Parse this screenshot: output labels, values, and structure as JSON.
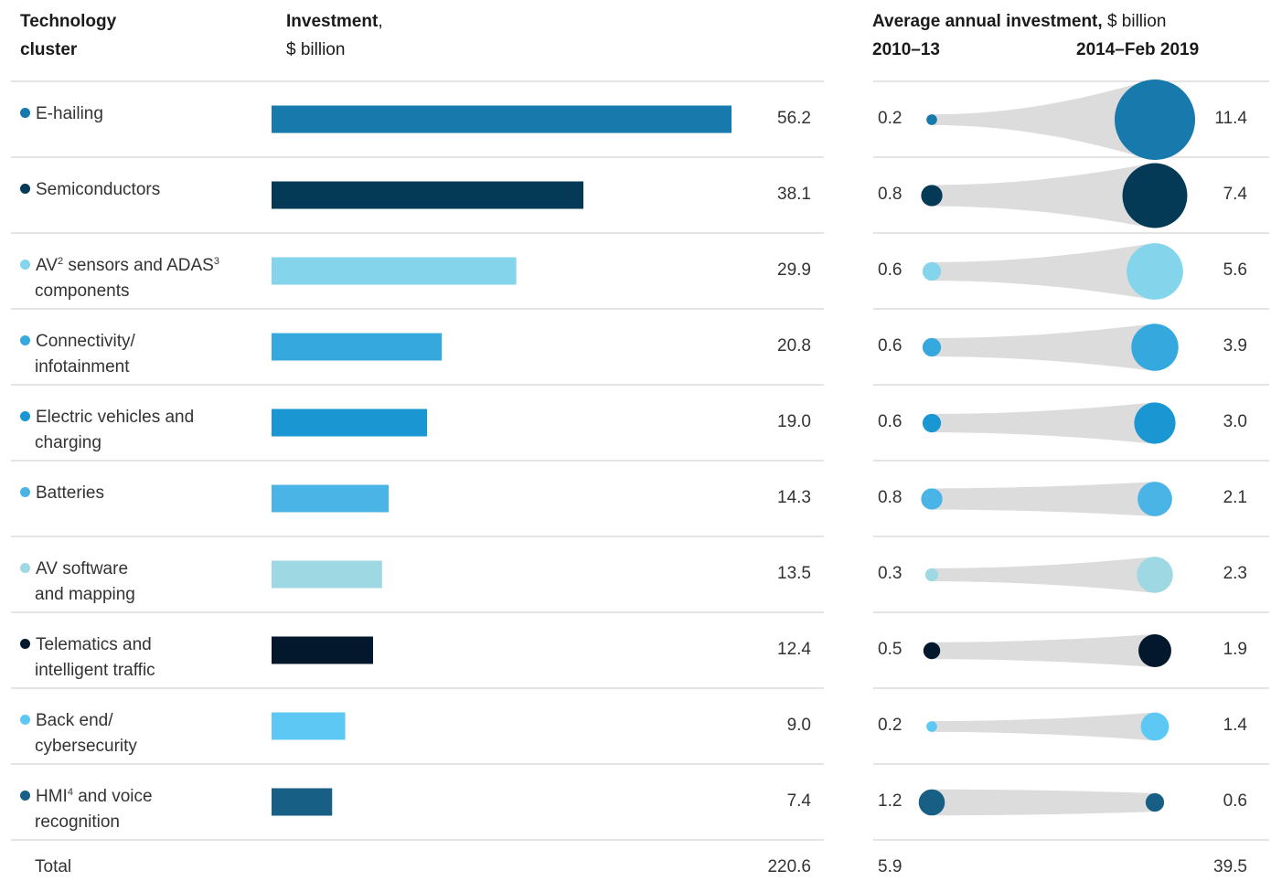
{
  "header": {
    "col1_line1": "Technology",
    "col1_line2": "cluster",
    "col2_bold": "Investment",
    "col2_comma": ",",
    "col2_line2": "$ billion",
    "col3_bold": "Average annual investment,",
    "col3_rest": " $ billion",
    "period1": "2010–13",
    "period2": "2014–Feb 2019"
  },
  "chart_data": {
    "type": "bar",
    "categories": [
      "E-hailing",
      "Semiconductors",
      "AV2 sensors and ADAS3 components",
      "Connectivity/ infotainment",
      "Electric vehicles and charging",
      "Batteries",
      "AV software and mapping",
      "Telematics and intelligent traffic",
      "Back end/ cybersecurity",
      "HMI4 and voice recognition"
    ],
    "values": [
      56.2,
      38.1,
      29.9,
      20.8,
      19.0,
      14.3,
      13.5,
      12.4,
      9.0,
      7.4
    ],
    "series": [
      {
        "name": "2010–13",
        "values": [
          0.2,
          0.8,
          0.6,
          0.6,
          0.6,
          0.8,
          0.3,
          0.5,
          0.2,
          1.2
        ]
      },
      {
        "name": "2014–Feb 2019",
        "values": [
          11.4,
          7.4,
          5.6,
          3.9,
          3.0,
          2.1,
          2.3,
          1.9,
          1.4,
          0.6
        ]
      }
    ],
    "xlim": [
      0,
      60
    ],
    "totals": {
      "investment": "220.6",
      "avg_2010_13": "5.9",
      "avg_2014_2019": "39.5"
    },
    "total_label": "Total",
    "colors": [
      "#1879ac",
      "#043a56",
      "#84d4ec",
      "#35a8de",
      "#1a96d3",
      "#4bb4e6",
      "#9ed8e3",
      "#03172d",
      "#5ec8f4",
      "#175f85"
    ]
  },
  "rows": [
    {
      "line1": "E-hailing",
      "sup1": "",
      "line1b": "",
      "sup2": "",
      "line2": "",
      "value": "56.2",
      "v1": "0.2",
      "v2": "11.4"
    },
    {
      "line1": "Semiconductors",
      "sup1": "",
      "line1b": "",
      "sup2": "",
      "line2": "",
      "value": "38.1",
      "v1": "0.8",
      "v2": "7.4"
    },
    {
      "line1": "AV",
      "sup1": "2",
      "line1b": " sensors and ADAS",
      "sup2": "3",
      "line2": "components",
      "value": "29.9",
      "v1": "0.6",
      "v2": "5.6"
    },
    {
      "line1": "Connectivity/",
      "sup1": "",
      "line1b": "",
      "sup2": "",
      "line2": "infotainment",
      "value": "20.8",
      "v1": "0.6",
      "v2": "3.9"
    },
    {
      "line1": "Electric vehicles and",
      "sup1": "",
      "line1b": "",
      "sup2": "",
      "line2": "charging",
      "value": "19.0",
      "v1": "0.6",
      "v2": "3.0"
    },
    {
      "line1": "Batteries",
      "sup1": "",
      "line1b": "",
      "sup2": "",
      "line2": "",
      "value": "14.3",
      "v1": "0.8",
      "v2": "2.1"
    },
    {
      "line1": "AV software",
      "sup1": "",
      "line1b": "",
      "sup2": "",
      "line2": "and mapping",
      "value": "13.5",
      "v1": "0.3",
      "v2": "2.3"
    },
    {
      "line1": "Telematics and",
      "sup1": "",
      "line1b": "",
      "sup2": "",
      "line2": "intelligent traffic",
      "value": "12.4",
      "v1": "0.5",
      "v2": "1.9"
    },
    {
      "line1": "Back end/",
      "sup1": "",
      "line1b": "",
      "sup2": "",
      "line2": "cybersecurity",
      "value": "9.0",
      "v1": "0.2",
      "v2": "1.4"
    },
    {
      "line1": "HMI",
      "sup1": "4",
      "line1b": " and voice",
      "sup2": "",
      "line2": "recognition",
      "value": "7.4",
      "v1": "1.2",
      "v2": "0.6"
    }
  ]
}
